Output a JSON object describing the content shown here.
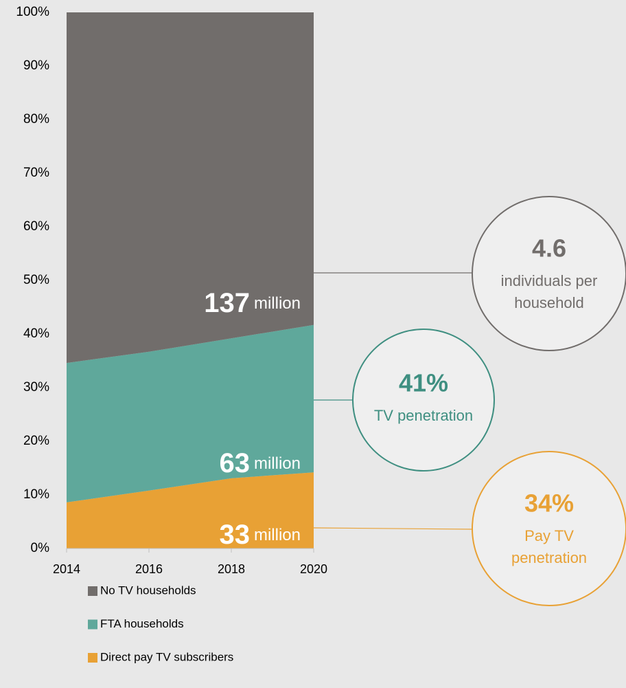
{
  "chart_data": {
    "type": "stacked_area",
    "x": [
      2014,
      2016,
      2018,
      2020
    ],
    "xlim": [
      2014,
      2020
    ],
    "xticks": [
      2014,
      2016,
      2018,
      2020
    ],
    "ylim": [
      0,
      100
    ],
    "yticks": [
      {
        "value": 0,
        "label": "0%"
      },
      {
        "value": 10,
        "label": "10%"
      },
      {
        "value": 20,
        "label": "20%"
      },
      {
        "value": 30,
        "label": "30%"
      },
      {
        "value": 40,
        "label": "40%"
      },
      {
        "value": 50,
        "label": "50%"
      },
      {
        "value": 60,
        "label": "60%"
      },
      {
        "value": 70,
        "label": "70%"
      },
      {
        "value": 80,
        "label": "80%"
      },
      {
        "value": 90,
        "label": "90%"
      },
      {
        "value": 100,
        "label": "100%"
      }
    ],
    "series": [
      {
        "name": "Direct pay TV subscribers",
        "color": "#e8a135",
        "values": [
          8.6,
          10.8,
          13.1,
          14.2
        ]
      },
      {
        "name": "FTA households",
        "color": "#5fa89b",
        "values": [
          26.0,
          25.9,
          26.1,
          27.5
        ]
      },
      {
        "name": "No TV households",
        "color": "#716d6b",
        "values": [
          65.4,
          63.3,
          60.8,
          58.3
        ]
      }
    ],
    "legend_order": [
      2,
      1,
      0
    ],
    "annotations": [
      {
        "value": "33",
        "unit": "million"
      },
      {
        "value": "63",
        "unit": "million"
      },
      {
        "value": "137",
        "unit": "million"
      }
    ],
    "callouts": [
      {
        "value": "34%",
        "lines": [
          "Pay TV",
          "penetration"
        ],
        "color": "#e8a135"
      },
      {
        "value": "41%",
        "lines": [
          "TV penetration"
        ],
        "color": "#3f8f81"
      },
      {
        "value": "4.6",
        "lines": [
          "individuals per",
          "household"
        ],
        "color": "#716d6b"
      }
    ]
  }
}
